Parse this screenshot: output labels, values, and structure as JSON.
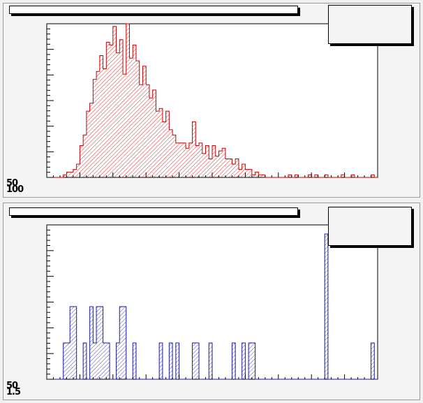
{
  "chart_data": [
    {
      "type": "histogram",
      "title": "",
      "xlabel": "",
      "ylabel": "",
      "color": "#cc0000",
      "fill": "hatched-diagonal",
      "tick_labels_visible": [
        "50",
        "100"
      ],
      "x": [
        1,
        2,
        3,
        4,
        5,
        6,
        7,
        8,
        9,
        10,
        11,
        12,
        13,
        14,
        15,
        16,
        17,
        18,
        19,
        20,
        21,
        22,
        23,
        24,
        25,
        26,
        27,
        28,
        29,
        30,
        31,
        32,
        33,
        34,
        35,
        36,
        37,
        38,
        39,
        40,
        41,
        42,
        43,
        44,
        45,
        46,
        47,
        48,
        49,
        50,
        51,
        52,
        53,
        54,
        55,
        56,
        57,
        58,
        59,
        60,
        61,
        62,
        63,
        64,
        65,
        66,
        67,
        68,
        69,
        70,
        71,
        72,
        73,
        74,
        75,
        76,
        77,
        78,
        79,
        80,
        81,
        82,
        83,
        84,
        85,
        86,
        87,
        88,
        89,
        90,
        91,
        92,
        93,
        94,
        95,
        96,
        97,
        98,
        99,
        100
      ],
      "values": [
        0,
        0,
        0,
        0,
        0,
        1,
        2,
        2,
        3,
        5,
        12,
        16,
        25,
        28,
        37,
        40,
        46,
        41,
        51,
        50,
        57,
        47,
        52,
        39,
        58,
        45,
        50,
        44,
        35,
        42,
        35,
        30,
        33,
        25,
        26,
        21,
        25,
        18,
        16,
        13,
        13,
        13,
        11,
        13,
        21,
        12,
        13,
        9,
        12,
        7,
        12,
        8,
        10,
        11,
        7,
        7,
        5,
        7,
        3,
        5,
        3,
        3,
        1,
        2,
        1,
        1,
        0,
        0,
        0,
        0,
        0,
        0,
        0,
        1,
        0,
        1,
        0,
        0,
        0,
        1,
        0,
        1,
        0,
        0,
        1,
        0,
        0,
        0,
        0,
        1,
        0,
        0,
        1,
        0,
        0,
        0,
        0,
        0,
        1,
        0
      ],
      "ylim": [
        0,
        58
      ]
    },
    {
      "type": "histogram",
      "title": "",
      "xlabel": "",
      "ylabel": "",
      "color": "#1a1aa6",
      "fill": "hatched-diagonal",
      "tick_labels_visible": [
        "50",
        "1.5"
      ],
      "x": [
        1,
        2,
        3,
        4,
        5,
        6,
        7,
        8,
        9,
        10,
        11,
        12,
        13,
        14,
        15,
        16,
        17,
        18,
        19,
        20,
        21,
        22,
        23,
        24,
        25,
        26,
        27,
        28,
        29,
        30,
        31,
        32,
        33,
        34,
        35,
        36,
        37,
        38,
        39,
        40,
        41,
        42,
        43,
        44,
        45,
        46,
        47,
        48,
        49,
        50,
        51,
        52,
        53,
        54,
        55,
        56,
        57,
        58,
        59,
        60,
        61,
        62,
        63,
        64,
        65,
        66,
        67,
        68,
        69,
        70,
        71,
        72,
        73,
        74,
        75,
        76,
        77,
        78,
        79,
        80,
        81,
        82,
        83,
        84,
        85,
        86,
        87,
        88,
        89,
        90,
        91,
        92,
        93,
        94,
        95,
        96,
        97,
        98,
        99,
        100
      ],
      "values": [
        0,
        0,
        0,
        0,
        0,
        2,
        2,
        4,
        4,
        0,
        0,
        2,
        0,
        4,
        2,
        4,
        4,
        2,
        2,
        0,
        0,
        2,
        4,
        4,
        0,
        0,
        2,
        0,
        0,
        0,
        0,
        0,
        0,
        0,
        2,
        0,
        0,
        2,
        0,
        2,
        0,
        0,
        0,
        0,
        2,
        2,
        0,
        0,
        0,
        2,
        0,
        0,
        0,
        0,
        0,
        0,
        2,
        0,
        0,
        2,
        0,
        2,
        2,
        0,
        0,
        0,
        0,
        0,
        0,
        0,
        0,
        0,
        0,
        0,
        0,
        0,
        0,
        0,
        0,
        0,
        0,
        0,
        0,
        0,
        8,
        0,
        0,
        0,
        0,
        0,
        0,
        0,
        0,
        0,
        0,
        0,
        0,
        0,
        2,
        0
      ],
      "ylim": [
        0,
        8.5
      ]
    }
  ]
}
